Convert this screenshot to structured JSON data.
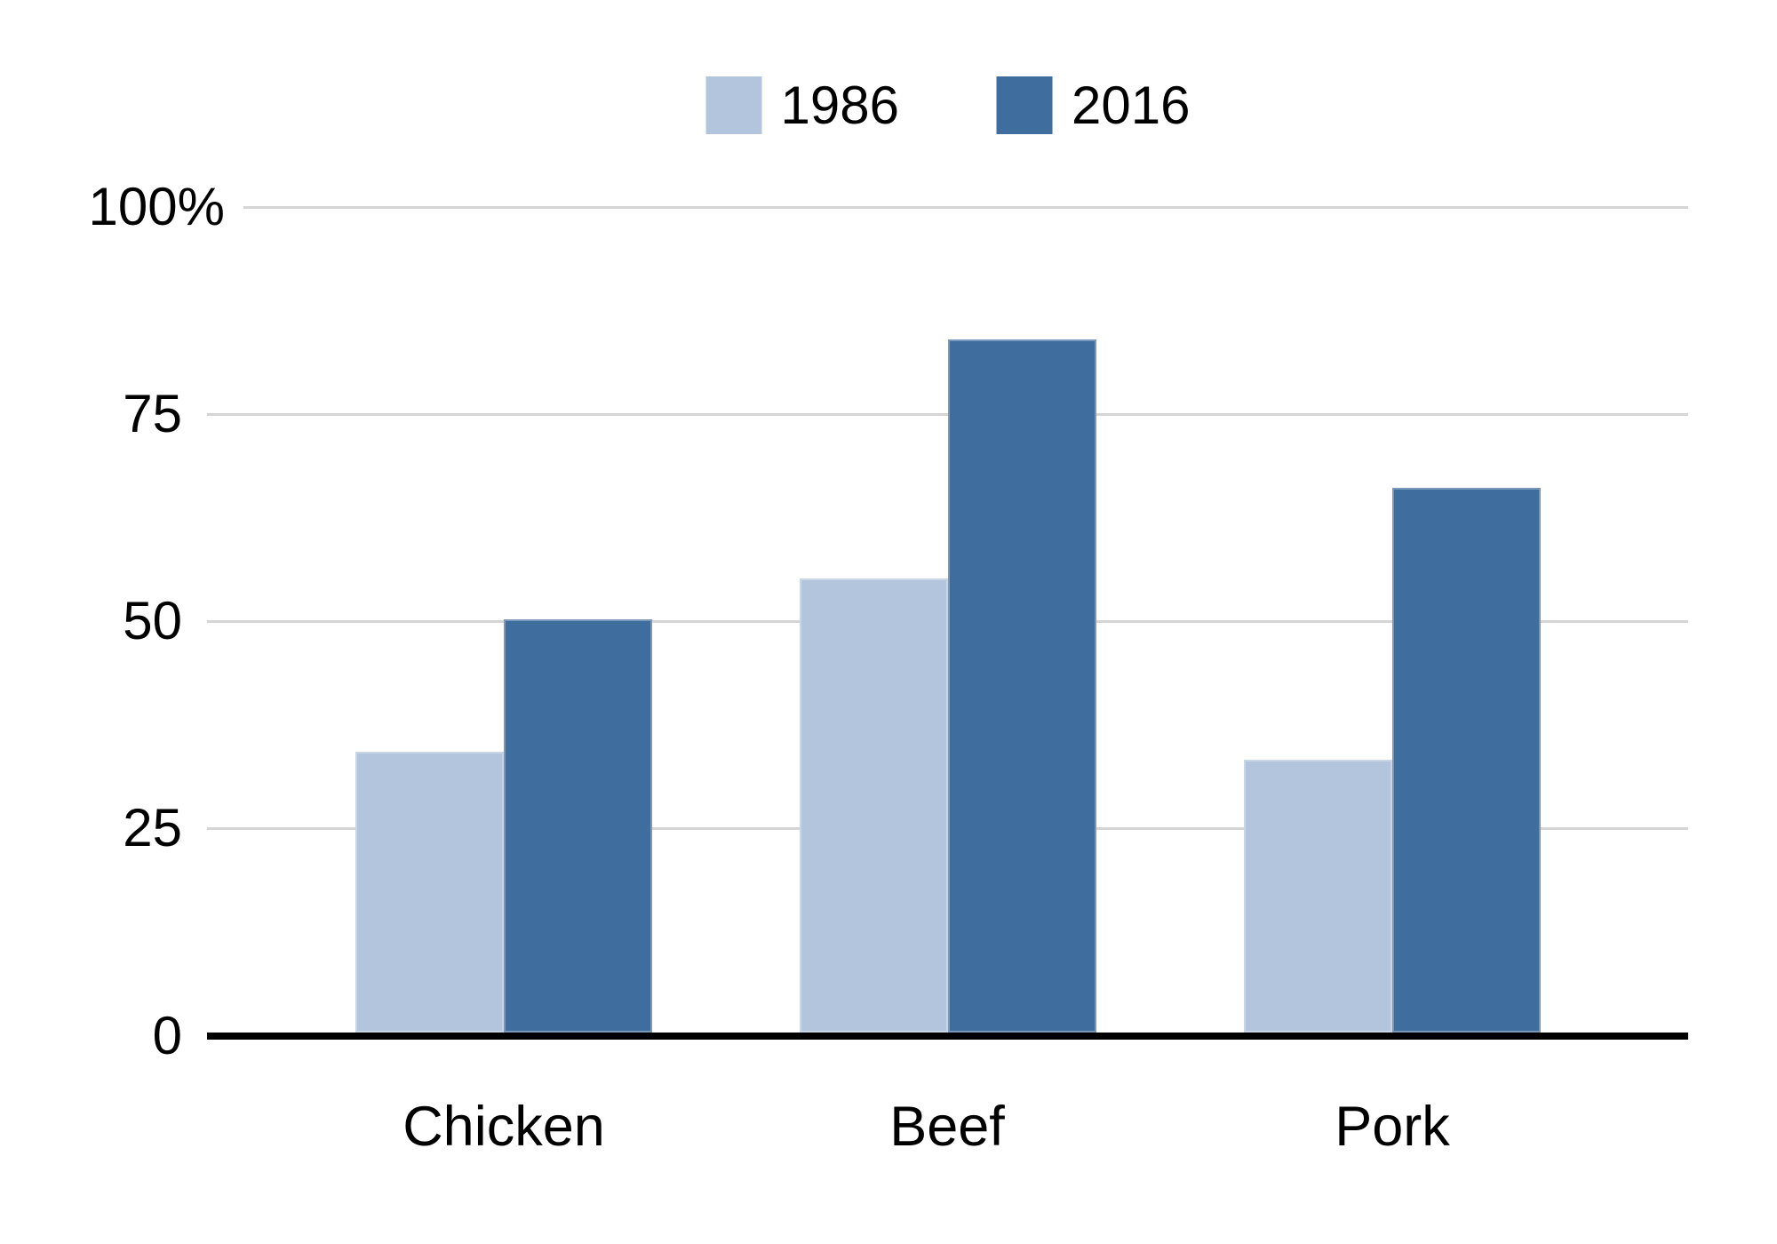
{
  "chart_data": {
    "type": "bar",
    "title": "",
    "categories": [
      "Chicken",
      "Beef",
      "Pork"
    ],
    "series": [
      {
        "name": "1986",
        "color": "#b2c5dc",
        "values": [
          34,
          55,
          33
        ]
      },
      {
        "name": "2016",
        "color": "#3e6d9e",
        "values": [
          50,
          84,
          66
        ]
      }
    ],
    "ylim": [
      0,
      100
    ],
    "y_ticks": [
      {
        "value": 100,
        "label": "100%"
      },
      {
        "value": 75,
        "label": "75"
      },
      {
        "value": 50,
        "label": "50"
      },
      {
        "value": 25,
        "label": "25"
      },
      {
        "value": 0,
        "label": "0"
      }
    ],
    "grid": "horizontal",
    "legend_position": "top-center",
    "colors": {
      "grid": "#d5d5d5",
      "axis": "#000000",
      "text": "#000000",
      "background": "#ffffff"
    }
  }
}
